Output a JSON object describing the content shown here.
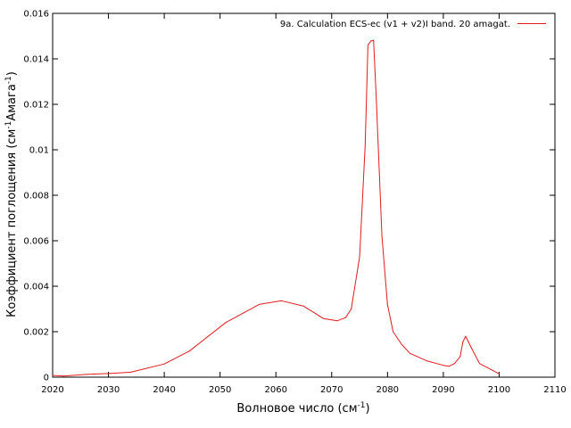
{
  "chart_data": {
    "type": "line",
    "title": "",
    "xlabel": {
      "base": "Волновое число (см",
      "sup": "-1",
      "tail": ")"
    },
    "ylabel": {
      "base": "Коэффициент поглощения (см",
      "sup": "-1",
      "mid": "Амага",
      "sup2": "-1",
      "tail": ")"
    },
    "xlim": [
      2020,
      2110
    ],
    "ylim": [
      0,
      0.016
    ],
    "x_ticks": [
      2020,
      2030,
      2040,
      2050,
      2060,
      2070,
      2080,
      2090,
      2100,
      2110
    ],
    "y_ticks": [
      0,
      0.002,
      0.004,
      0.006,
      0.008,
      0.01,
      0.012,
      0.014,
      0.016
    ],
    "x_tick_labels": [
      "2020",
      "2030",
      "2040",
      "2050",
      "2060",
      "2070",
      "2080",
      "2090",
      "2100",
      "2110"
    ],
    "y_tick_labels": [
      "0",
      "0.002",
      "0.004",
      "0.006",
      "0.008",
      "0.01",
      "0.012",
      "0.014",
      "0.016"
    ],
    "grid": false,
    "legend_position": "top-right",
    "series": [
      {
        "name": "9a. Calculation ECS-ec (v1 + v2)I band. 20 amagat.",
        "color": "#e41a1c",
        "x": [
          2020,
          2022,
          2026,
          2030,
          2034,
          2040,
          2044.5,
          2051,
          2057,
          2061,
          2065,
          2068.5,
          2071,
          2072.5,
          2073.5,
          2075,
          2076,
          2076.5,
          2077,
          2077.5,
          2078,
          2079,
          2080,
          2081,
          2082.5,
          2084,
          2087,
          2090,
          2091,
          2092,
          2093,
          2093.5,
          2094,
          2095,
          2096.5,
          2100
        ],
        "y": [
          8e-05,
          5e-05,
          0.00012,
          0.00016,
          0.00022,
          0.00058,
          0.00115,
          0.0024,
          0.0032,
          0.00336,
          0.00312,
          0.00258,
          0.00248,
          0.00262,
          0.003,
          0.0053,
          0.0102,
          0.0146,
          0.01478,
          0.01482,
          0.0122,
          0.0062,
          0.0032,
          0.002,
          0.00145,
          0.00105,
          0.00072,
          0.00052,
          0.00048,
          0.0006,
          0.0009,
          0.00155,
          0.0018,
          0.0013,
          0.0006,
          0.00015
        ]
      }
    ]
  }
}
